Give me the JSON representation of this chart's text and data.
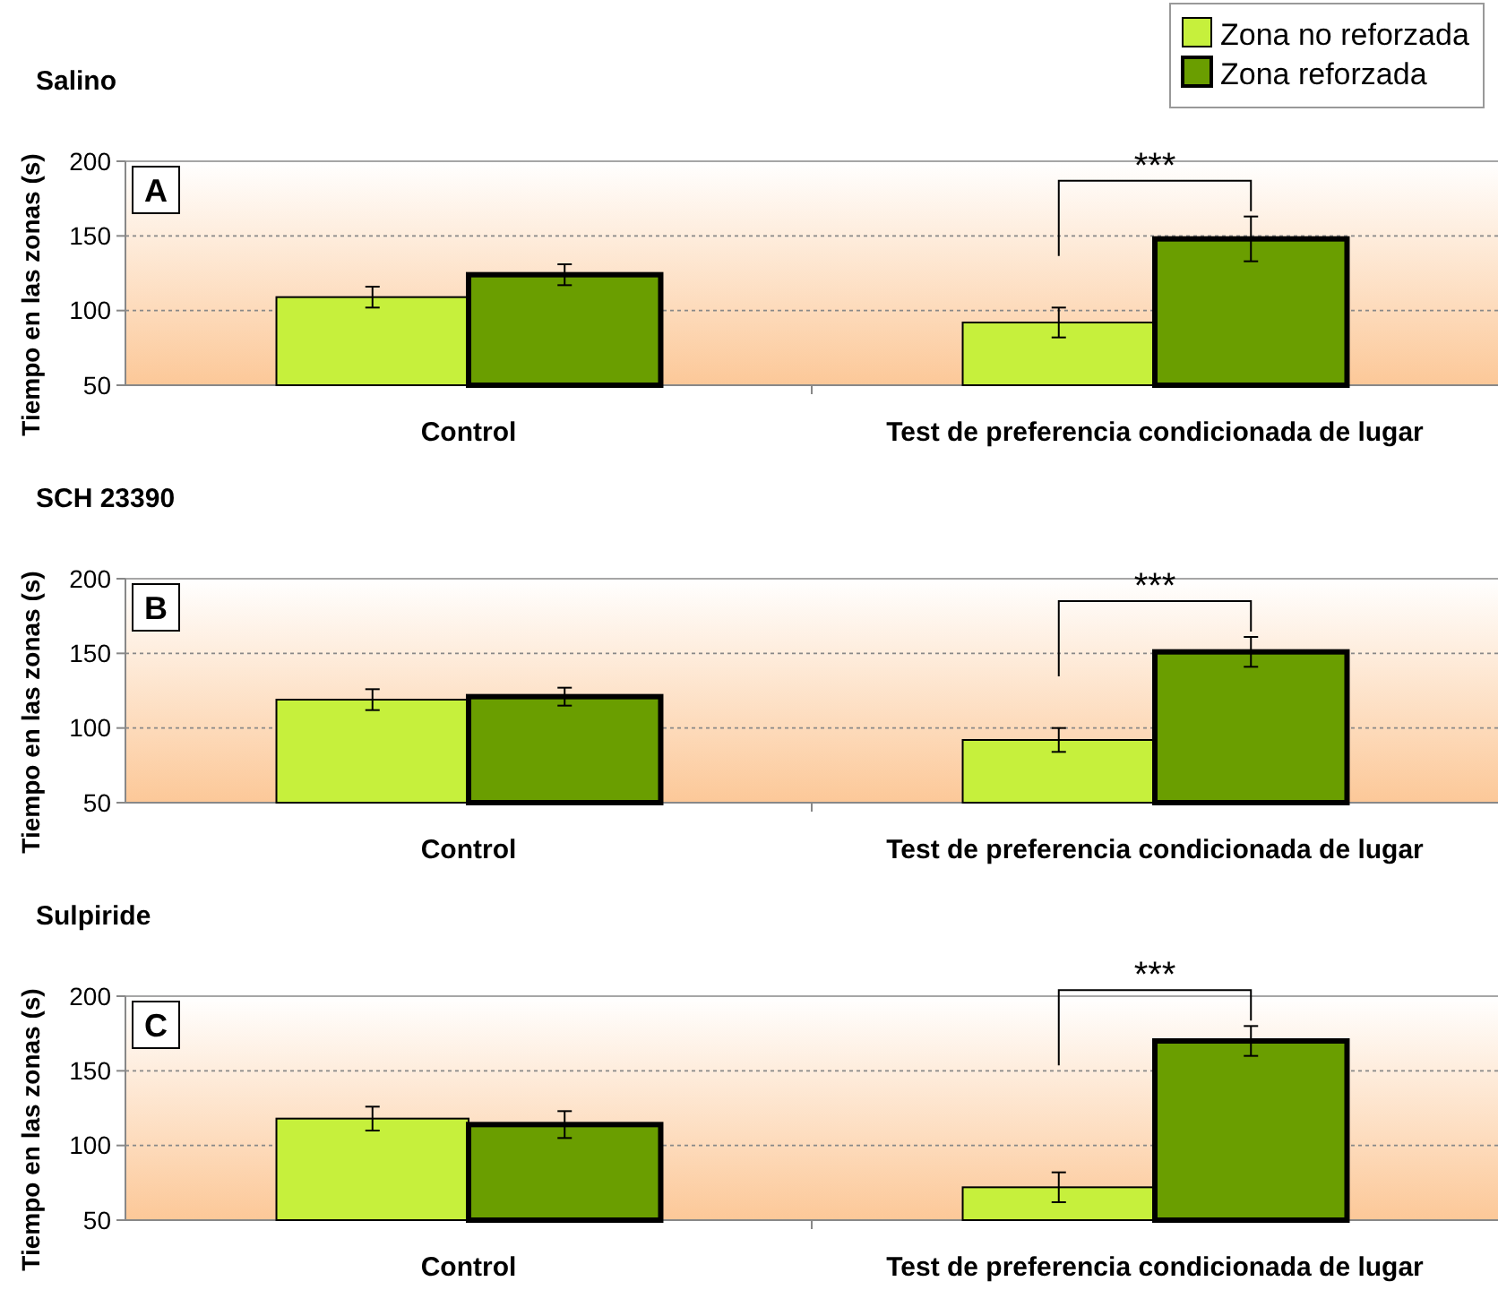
{
  "chart_data": [
    {
      "type": "bar",
      "title": "Salino",
      "ylabel": "Tiempo en las zonas (s)",
      "categories": [
        "Control",
        "Test de preferencia condicionada de lugar"
      ],
      "ylim": [
        50,
        200
      ],
      "yticks": [
        50,
        100,
        150,
        200
      ],
      "grid": "y",
      "legend": "top right",
      "series": [
        {
          "name": "Zona no reforzada",
          "color": "#c6f03c",
          "values": [
            109,
            92
          ],
          "errors": [
            7,
            10
          ]
        },
        {
          "name": "Zona reforzada",
          "color": "#6a9e00",
          "values": [
            124,
            148
          ],
          "errors": [
            7,
            15
          ]
        }
      ],
      "annotations": [
        "A",
        "***"
      ]
    },
    {
      "type": "bar",
      "title": "SCH 23390",
      "ylabel": "Tiempo en las zonas (s)",
      "categories": [
        "Control",
        "Test de preferencia condicionada de lugar"
      ],
      "ylim": [
        50,
        200
      ],
      "yticks": [
        50,
        100,
        150,
        200
      ],
      "grid": "y",
      "series": [
        {
          "color": "#c6f03c",
          "values": [
            119,
            92
          ],
          "errors": [
            7,
            8
          ]
        },
        {
          "color": "#6a9e00",
          "values": [
            121,
            151
          ],
          "errors": [
            6,
            10
          ]
        }
      ],
      "annotations": [
        "B",
        "***"
      ]
    },
    {
      "type": "bar",
      "title": "Sulpiride",
      "ylabel": "Tiempo en las zonas (s)",
      "categories": [
        "Control",
        "Test de preferencia condicionada de lugar"
      ],
      "ylim": [
        50,
        200
      ],
      "yticks": [
        50,
        100,
        150,
        200
      ],
      "grid": "y",
      "series": [
        {
          "color": "#c6f03c",
          "values": [
            118,
            72
          ],
          "errors": [
            8,
            10
          ]
        },
        {
          "color": "#6a9e00",
          "values": [
            114,
            170
          ],
          "errors": [
            9,
            10
          ]
        }
      ],
      "annotations": [
        "C",
        "***"
      ]
    }
  ]
}
